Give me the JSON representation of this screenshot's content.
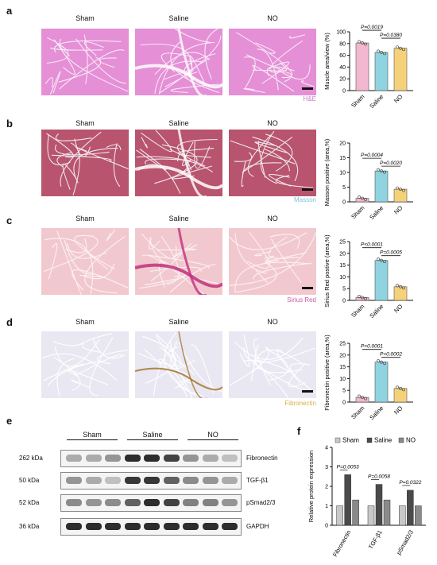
{
  "panels": {
    "a": {
      "letter": "a",
      "stain": "H&E",
      "stain_color": "#c880c8",
      "tissue_color": "#e58fd6",
      "line_color": "#f7e8f6",
      "cols": [
        "Sham",
        "Saline",
        "NO"
      ]
    },
    "b": {
      "letter": "b",
      "stain": "Masson",
      "stain_color": "#7fc3dd",
      "tissue_color": "#b8546e",
      "line_color": "#efe6ec",
      "cols": [
        "Sham",
        "Saline",
        "NO"
      ]
    },
    "c": {
      "letter": "c",
      "stain": "Sirius Red",
      "stain_color": "#cc5aa0",
      "tissue_color": "#f2c8cf",
      "line_color": "#fbf1f2",
      "cols": [
        "Sham",
        "Saline",
        "NO"
      ]
    },
    "d": {
      "letter": "d",
      "stain": "Fibronectin",
      "stain_color": "#d9b04a",
      "tissue_color": "#e9e7f1",
      "line_color": "#ffffff",
      "cols": [
        "Sham",
        "Saline",
        "NO"
      ]
    },
    "e": {
      "letter": "e",
      "groups": [
        "Sham",
        "Saline",
        "NO"
      ],
      "rows": [
        {
          "kda": "262 kDa",
          "protein": "Fibronectin"
        },
        {
          "kda": "50 kDa",
          "protein": "TGF-β1"
        },
        {
          "kda": "52 kDa",
          "protein": "pSmad2/3"
        },
        {
          "kda": "36 kDa",
          "protein": "GAPDH"
        }
      ]
    },
    "f": {
      "letter": "f"
    }
  },
  "chart_data": [
    {
      "type": "bar",
      "panel": "a",
      "categories": [
        "Sham",
        "Saline",
        "NO"
      ],
      "values": [
        81,
        65,
        72
      ],
      "ylabel": "Muscle area/view (%)",
      "ylim": [
        0,
        100
      ],
      "yticks": [
        0,
        20,
        40,
        60,
        80,
        100
      ],
      "colors": [
        "#f2b8cf",
        "#8fd3e0",
        "#f5d27a"
      ],
      "annotations": [
        {
          "text": "P=0.0019",
          "from": 0,
          "to": 1
        },
        {
          "text": "P=0.0380",
          "from": 1,
          "to": 2
        }
      ]
    },
    {
      "type": "bar",
      "panel": "b",
      "categories": [
        "Sham",
        "Saline",
        "NO"
      ],
      "values": [
        1.2,
        10.5,
        4.3
      ],
      "ylabel": "Masson positive (area,%)",
      "ylim": [
        0,
        20
      ],
      "yticks": [
        0,
        5,
        10,
        15,
        20
      ],
      "colors": [
        "#f2b8cf",
        "#8fd3e0",
        "#f5d27a"
      ],
      "annotations": [
        {
          "text": "P=0.0004",
          "from": 0,
          "to": 1
        },
        {
          "text": "P=0.0020",
          "from": 1,
          "to": 2
        }
      ]
    },
    {
      "type": "bar",
      "panel": "c",
      "categories": [
        "Sham",
        "Saline",
        "NO"
      ],
      "values": [
        1.2,
        17.0,
        5.8
      ],
      "ylabel": "Sirius Red postive (area,%)",
      "ylim": [
        0,
        25
      ],
      "yticks": [
        0,
        5,
        10,
        15,
        20,
        25
      ],
      "colors": [
        "#f2b8cf",
        "#8fd3e0",
        "#f5d27a"
      ],
      "annotations": [
        {
          "text": "P<0.0001",
          "from": 0,
          "to": 1
        },
        {
          "text": "P=0.0005",
          "from": 1,
          "to": 2
        }
      ]
    },
    {
      "type": "bar",
      "panel": "d",
      "categories": [
        "Sham",
        "Saline",
        "NO"
      ],
      "values": [
        2.0,
        17.0,
        5.8
      ],
      "ylabel": "Fibronectin positive (area,%)",
      "ylim": [
        0,
        25
      ],
      "yticks": [
        0,
        5,
        10,
        15,
        20,
        25
      ],
      "colors": [
        "#f2b8cf",
        "#8fd3e0",
        "#f5d27a"
      ],
      "annotations": [
        {
          "text": "P<0.0001",
          "from": 0,
          "to": 1
        },
        {
          "text": "P=0.0002",
          "from": 1,
          "to": 2
        }
      ]
    },
    {
      "type": "bar",
      "panel": "f",
      "categories": [
        "Fibronectin",
        "TGF-β1",
        "pSmad2/3"
      ],
      "series": [
        {
          "name": "Sham",
          "values": [
            1.0,
            1.0,
            1.0
          ],
          "color": "#c8c8c8"
        },
        {
          "name": "Saline",
          "values": [
            2.6,
            2.1,
            1.8
          ],
          "color": "#4a4a4a"
        },
        {
          "name": "NO",
          "values": [
            1.3,
            1.3,
            1.0
          ],
          "color": "#8a8a8a"
        }
      ],
      "ylabel": "Relative protein expression",
      "ylim": [
        0,
        4
      ],
      "yticks": [
        0,
        1,
        2,
        3,
        4
      ],
      "legend": [
        "Sham",
        "Saline",
        "NO"
      ],
      "annotations": [
        {
          "text": "P=0.0053",
          "category": 0
        },
        {
          "text": "P=0.0058",
          "category": 1
        },
        {
          "text": "P=0.0322",
          "category": 2
        }
      ]
    }
  ]
}
